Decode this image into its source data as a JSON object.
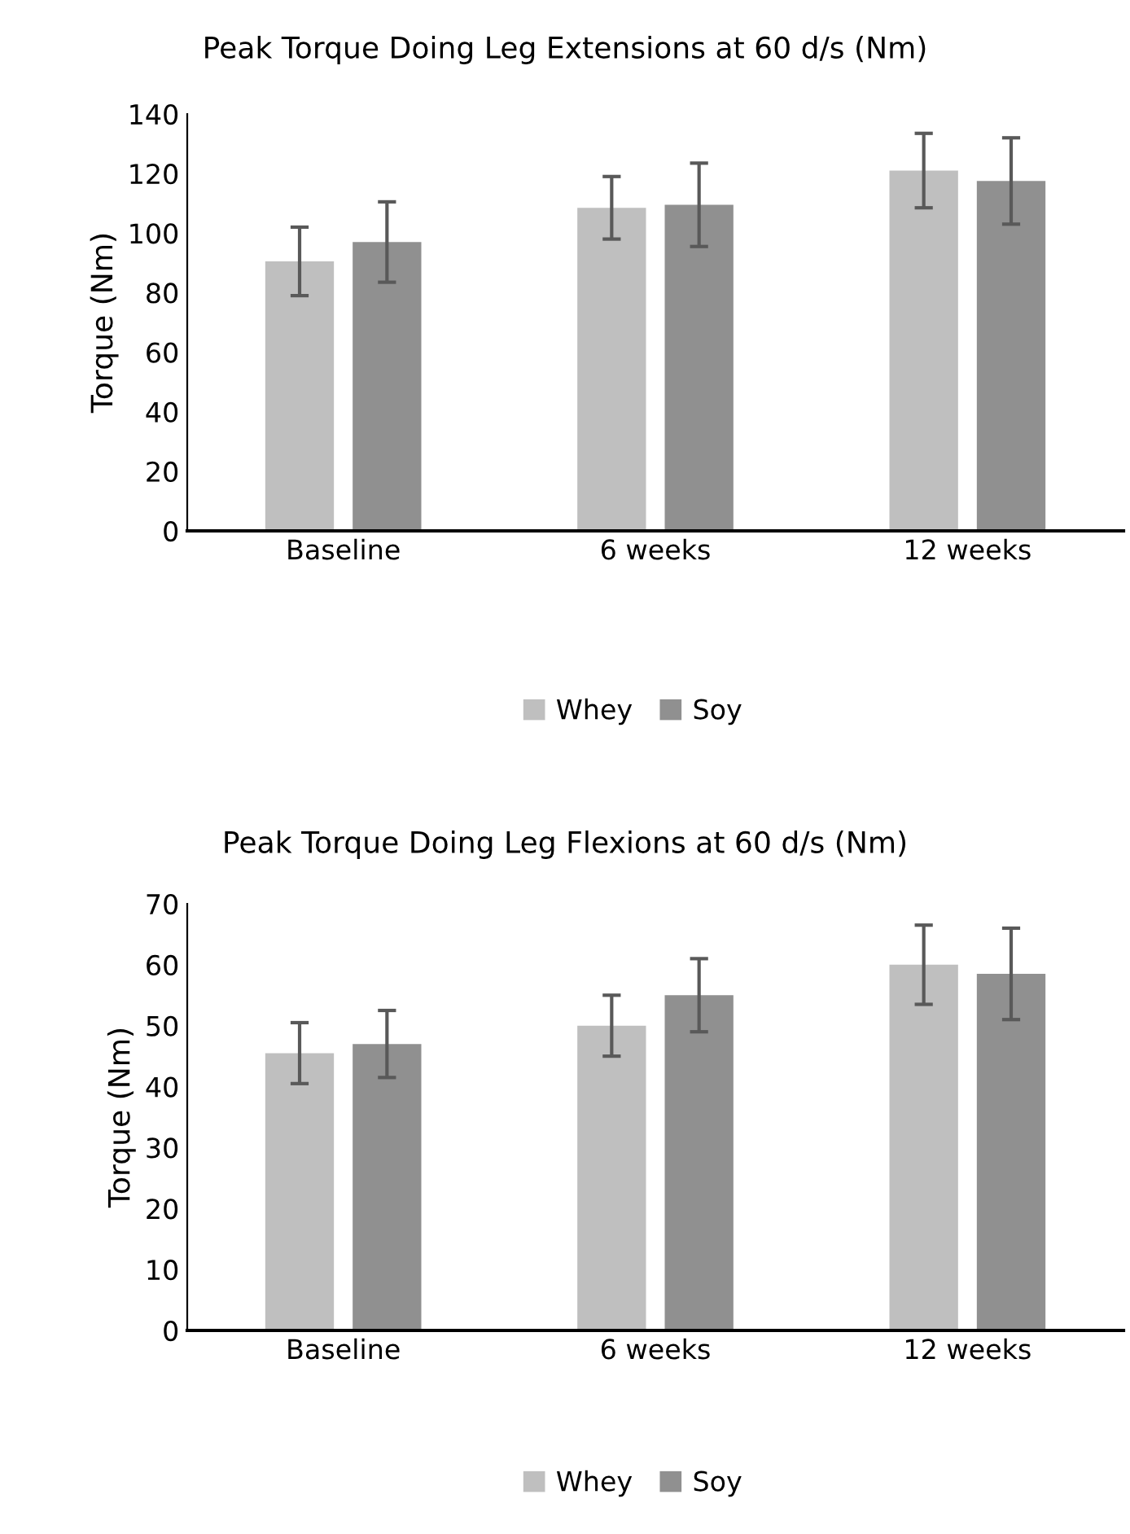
{
  "chart_data": [
    {
      "type": "bar",
      "title": "Peak Torque Doing Leg Extensions at 60 d/s (Nm)",
      "ylabel": "Torque (Nm)",
      "categories": [
        "Baseline",
        "6 weeks",
        "12 weeks"
      ],
      "series": [
        {
          "name": "Whey",
          "color": "#bfbfbf",
          "values": [
            90.5,
            108.5,
            121
          ],
          "errors": [
            11.5,
            10.5,
            12.5
          ]
        },
        {
          "name": "Soy",
          "color": "#909090",
          "values": [
            97,
            109.5,
            117.5
          ],
          "errors": [
            13.5,
            14,
            14.5
          ]
        }
      ],
      "ylim": [
        0,
        140
      ],
      "yticks": [
        0,
        20,
        40,
        60,
        80,
        100,
        120,
        140
      ],
      "grid": false,
      "legend": "bottom"
    },
    {
      "type": "bar",
      "title": "Peak Torque Doing Leg Flexions at 60 d/s (Nm)",
      "ylabel": "Torque (Nm)",
      "categories": [
        "Baseline",
        "6 weeks",
        "12 weeks"
      ],
      "series": [
        {
          "name": "Whey",
          "color": "#bfbfbf",
          "values": [
            45.5,
            50,
            60
          ],
          "errors": [
            5,
            5,
            6.5
          ]
        },
        {
          "name": "Soy",
          "color": "#909090",
          "values": [
            47,
            55,
            58.5
          ],
          "errors": [
            5.5,
            6,
            7.5
          ]
        }
      ],
      "ylim": [
        0,
        70
      ],
      "yticks": [
        0,
        10,
        20,
        30,
        40,
        50,
        60,
        70
      ],
      "grid": false,
      "legend": "bottom"
    }
  ]
}
